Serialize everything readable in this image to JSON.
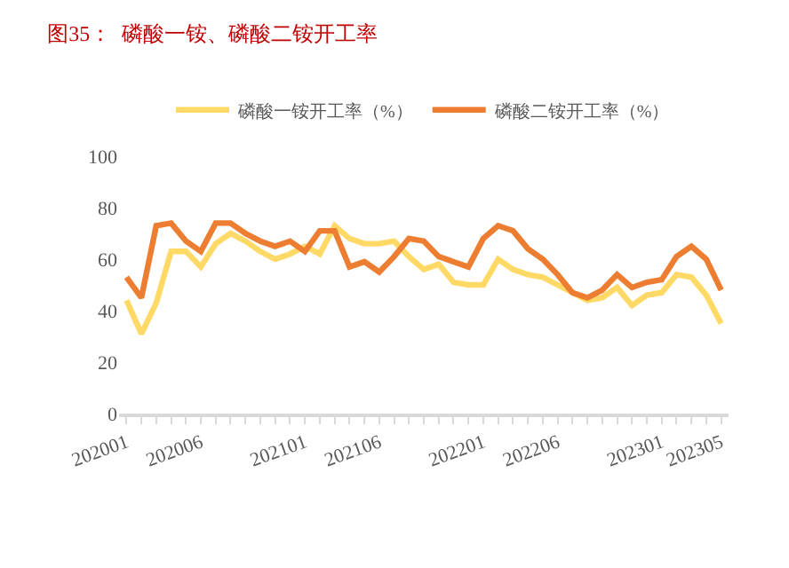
{
  "chart_data": {
    "type": "line",
    "title": "图35：  磷酸一铵、磷酸二铵开工率",
    "categories": [
      "202001",
      null,
      null,
      null,
      null,
      "202006",
      null,
      null,
      null,
      null,
      null,
      null,
      "202101",
      null,
      null,
      null,
      null,
      "202106",
      null,
      null,
      null,
      null,
      null,
      null,
      "202201",
      null,
      null,
      null,
      null,
      "202206",
      null,
      null,
      null,
      null,
      null,
      null,
      "202301",
      null,
      null,
      null,
      "202305"
    ],
    "series": [
      {
        "name": "磷酸一铵开工率（%）",
        "color": "#ffd966",
        "values": [
          44,
          31,
          43,
          63,
          63,
          57,
          66,
          70,
          67,
          63,
          60,
          62,
          65,
          62,
          73,
          68,
          66,
          66,
          67,
          61,
          56,
          58,
          51,
          50,
          50,
          60,
          56,
          54,
          53,
          50,
          47,
          44,
          45,
          49,
          42,
          46,
          47,
          54,
          53,
          46,
          35
        ]
      },
      {
        "name": "磷酸二铵开工率（%）",
        "color": "#ed7d31",
        "values": [
          53,
          45,
          73,
          74,
          67,
          63,
          74,
          74,
          70,
          67,
          65,
          67,
          63,
          71,
          71,
          57,
          59,
          55,
          61,
          68,
          67,
          61,
          59,
          57,
          68,
          73,
          71,
          64,
          60,
          54,
          47,
          45,
          48,
          54,
          49,
          51,
          52,
          61,
          65,
          60,
          48
        ]
      }
    ],
    "ylim": [
      0,
      100
    ],
    "yticks": [
      0,
      20,
      40,
      60,
      80,
      100
    ],
    "legend": "top",
    "marker": "none",
    "line_style": "solid"
  }
}
